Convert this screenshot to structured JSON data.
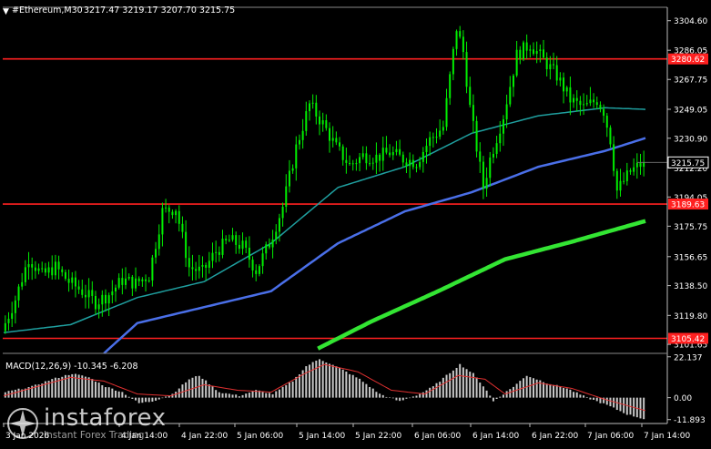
{
  "header": {
    "symbol": "#Ethereum,M30",
    "ohlc": "3217.47 3219.17 3207.70 3215.75"
  },
  "colors": {
    "background": "#000000",
    "candles": "#00ee00",
    "ma_short": "#1f9f9f",
    "ma_mid": "#4a6fe8",
    "ma_long": "#33e533",
    "level_lines": "#ff2020",
    "macd_hist": "#c8c8c8",
    "macd_signal": "#e03030",
    "axis_text": "#ffffff"
  },
  "price_axis": {
    "ticks": [
      "3304.60",
      "3286.05",
      "3267.75",
      "3249.05",
      "3230.90",
      "3212.20",
      "3194.05",
      "3175.75",
      "3156.65",
      "3138.50",
      "3119.80",
      "3101.65"
    ]
  },
  "level_lines": [
    {
      "value": 3280.62,
      "label": "3280.62"
    },
    {
      "value": 3189.63,
      "label": "3189.63"
    },
    {
      "value": 3105.42,
      "label": "3105.42"
    }
  ],
  "current_price": {
    "value": 3215.75,
    "label": "3215.75"
  },
  "macd": {
    "label": "MACD(12,26,9) -10.345 -6.208",
    "axis_ticks": [
      "22.137",
      "0.00",
      "-11.893"
    ]
  },
  "time_axis": {
    "labels": [
      "3 Jan 2026",
      "4 Jan 14:00",
      "4 Jan 22:00",
      "5 Jan 06:00",
      "5 Jan 14:00",
      "5 Jan 22:00",
      "6 Jan 06:00",
      "6 Jan 14:00",
      "6 Jan 22:00",
      "7 Jan 06:00",
      "7 Jan 14:00"
    ]
  },
  "watermark": {
    "brand": "instaforex",
    "tagline": "Instant Forex Trading"
  },
  "chart_data": {
    "type": "candlestick",
    "timeframe": "M30",
    "ylim": [
      3096,
      3313
    ],
    "x": [
      "3 Jan 2026",
      "4 Jan 14:00",
      "4 Jan 22:00",
      "5 Jan 06:00",
      "5 Jan 14:00",
      "5 Jan 22:00",
      "6 Jan 06:00",
      "6 Jan 14:00",
      "6 Jan 22:00",
      "7 Jan 06:00",
      "7 Jan 14:00"
    ],
    "close_path": [
      [
        0,
        3110
      ],
      [
        4,
        3130
      ],
      [
        8,
        3156
      ],
      [
        12,
        3145
      ],
      [
        16,
        3150
      ],
      [
        20,
        3141
      ],
      [
        24,
        3135
      ],
      [
        28,
        3128
      ],
      [
        32,
        3133
      ],
      [
        36,
        3142
      ],
      [
        40,
        3140
      ],
      [
        44,
        3145
      ],
      [
        48,
        3185
      ],
      [
        52,
        3187
      ],
      [
        56,
        3150
      ],
      [
        60,
        3147
      ],
      [
        64,
        3160
      ],
      [
        68,
        3167
      ],
      [
        72,
        3163
      ],
      [
        76,
        3148
      ],
      [
        80,
        3165
      ],
      [
        84,
        3188
      ],
      [
        88,
        3225
      ],
      [
        92,
        3252
      ],
      [
        96,
        3240
      ],
      [
        100,
        3225
      ],
      [
        104,
        3214
      ],
      [
        108,
        3220
      ],
      [
        112,
        3219
      ],
      [
        116,
        3222
      ],
      [
        120,
        3218
      ],
      [
        124,
        3216
      ],
      [
        128,
        3230
      ],
      [
        132,
        3238
      ],
      [
        136,
        3300
      ],
      [
        138,
        3285
      ],
      [
        140,
        3250
      ],
      [
        144,
        3200
      ],
      [
        146,
        3218
      ],
      [
        150,
        3245
      ],
      [
        154,
        3283
      ],
      [
        158,
        3290
      ],
      [
        162,
        3280
      ],
      [
        166,
        3270
      ],
      [
        170,
        3255
      ],
      [
        174,
        3250
      ],
      [
        178,
        3255
      ],
      [
        180,
        3248
      ],
      [
        182,
        3230
      ],
      [
        184,
        3198
      ],
      [
        188,
        3210
      ],
      [
        192,
        3215.75
      ]
    ],
    "series": [
      {
        "name": "",
        "values": [
          [
            0,
            3109
          ],
          [
            20,
            3114
          ],
          [
            40,
            3131
          ],
          [
            60,
            3141
          ],
          [
            80,
            3165
          ],
          [
            100,
            3200
          ],
          [
            120,
            3213
          ],
          [
            140,
            3234
          ],
          [
            160,
            3245
          ],
          [
            180,
            3250
          ],
          [
            192,
            3249
          ]
        ]
      },
      {
        "name": "",
        "values": [
          [
            30,
            3096
          ],
          [
            40,
            3115
          ],
          [
            60,
            3125
          ],
          [
            80,
            3135
          ],
          [
            100,
            3165
          ],
          [
            120,
            3185
          ],
          [
            140,
            3197
          ],
          [
            160,
            3213
          ],
          [
            180,
            3223
          ],
          [
            192,
            3231
          ]
        ]
      },
      {
        "name": "",
        "values": [
          [
            94,
            3099
          ],
          [
            110,
            3116
          ],
          [
            130,
            3135
          ],
          [
            150,
            3155
          ],
          [
            170,
            3166
          ],
          [
            192,
            3179
          ]
        ]
      }
    ],
    "macd_histogram": [
      [
        0,
        3
      ],
      [
        8,
        6
      ],
      [
        14,
        10
      ],
      [
        20,
        13
      ],
      [
        25,
        11
      ],
      [
        30,
        6
      ],
      [
        35,
        3
      ],
      [
        40,
        -3
      ],
      [
        44,
        -2
      ],
      [
        50,
        2
      ],
      [
        55,
        10
      ],
      [
        58,
        12
      ],
      [
        64,
        3
      ],
      [
        70,
        1
      ],
      [
        75,
        4
      ],
      [
        80,
        2
      ],
      [
        86,
        9
      ],
      [
        90,
        17
      ],
      [
        94,
        21
      ],
      [
        100,
        16
      ],
      [
        106,
        10
      ],
      [
        112,
        2
      ],
      [
        118,
        -2
      ],
      [
        124,
        2
      ],
      [
        128,
        6
      ],
      [
        132,
        12
      ],
      [
        136,
        18
      ],
      [
        140,
        13
      ],
      [
        144,
        4
      ],
      [
        146,
        -2
      ],
      [
        152,
        6
      ],
      [
        156,
        12
      ],
      [
        162,
        8
      ],
      [
        168,
        5
      ],
      [
        174,
        0
      ],
      [
        180,
        -4
      ],
      [
        186,
        -9
      ],
      [
        192,
        -12
      ]
    ],
    "macd_signal_line": [
      [
        0,
        1
      ],
      [
        10,
        6
      ],
      [
        20,
        11
      ],
      [
        30,
        9
      ],
      [
        40,
        2
      ],
      [
        50,
        1
      ],
      [
        60,
        7
      ],
      [
        70,
        4
      ],
      [
        80,
        3
      ],
      [
        90,
        13
      ],
      [
        96,
        18
      ],
      [
        106,
        14
      ],
      [
        116,
        4
      ],
      [
        126,
        2
      ],
      [
        136,
        12
      ],
      [
        144,
        10
      ],
      [
        150,
        2
      ],
      [
        160,
        8
      ],
      [
        170,
        5
      ],
      [
        180,
        -1
      ],
      [
        192,
        -7
      ]
    ]
  }
}
